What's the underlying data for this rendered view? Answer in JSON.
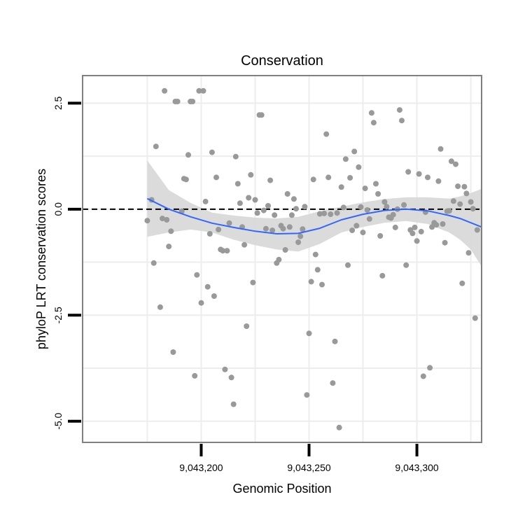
{
  "chart_data": {
    "type": "scatter",
    "title": "Conservation",
    "xlabel": "Genomic Position",
    "ylabel": "phyloP LRT conservation scores",
    "xlim": [
      9043145,
      9043330
    ],
    "ylim": [
      -5.5,
      3.15
    ],
    "x_ticks": [
      {
        "value": 9043200,
        "label": "9,043,200"
      },
      {
        "value": 9043250,
        "label": "9,043,250"
      },
      {
        "value": 9043300,
        "label": "9,043,300"
      }
    ],
    "y_ticks": [
      {
        "value": 2.5,
        "label": "2.5"
      },
      {
        "value": 0.0,
        "label": "0.0"
      },
      {
        "value": -2.5,
        "label": "-2.5"
      },
      {
        "value": -5.0,
        "label": "-5.0"
      }
    ],
    "reference_line": {
      "y": 0,
      "style": "dashed"
    },
    "colors": {
      "points": "#999999",
      "smooth_line": "#3366ff",
      "confidence_band": "#d9d9d9",
      "grid": "#ededed",
      "panel_border": "#808080",
      "axis": "#000000"
    },
    "points": [
      [
        9043175,
        -0.27
      ],
      [
        9043177,
        0.22
      ],
      [
        9043178,
        -1.27
      ],
      [
        9043179,
        1.48
      ],
      [
        9043181,
        -2.31
      ],
      [
        9043182,
        -0.22
      ],
      [
        9043183,
        2.79
      ],
      [
        9043184,
        -0.25
      ],
      [
        9043185,
        -0.88
      ],
      [
        9043186,
        -0.52
      ],
      [
        9043187,
        -3.37
      ],
      [
        9043188,
        2.54
      ],
      [
        9043189,
        2.54
      ],
      [
        9043191,
        -0.05
      ],
      [
        9043192,
        0.72
      ],
      [
        9043193,
        0.7
      ],
      [
        9043194,
        1.28
      ],
      [
        9043195,
        2.54
      ],
      [
        9043196,
        2.54
      ],
      [
        9043197,
        -3.93
      ],
      [
        9043198,
        -1.55
      ],
      [
        9043199,
        2.79
      ],
      [
        9043200,
        -2.21
      ],
      [
        9043201,
        2.79
      ],
      [
        9043202,
        0.18
      ],
      [
        9043203,
        -1.83
      ],
      [
        9043204,
        -0.58
      ],
      [
        9043205,
        1.34
      ],
      [
        9043206,
        -2.05
      ],
      [
        9043207,
        0.75
      ],
      [
        9043208,
        -0.48
      ],
      [
        9043209,
        -0.95
      ],
      [
        9043210,
        -0.98
      ],
      [
        9043211,
        -3.78
      ],
      [
        9043212,
        -0.98
      ],
      [
        9043213,
        -0.33
      ],
      [
        9043214,
        -3.97
      ],
      [
        9043215,
        -4.6
      ],
      [
        9043216,
        1.24
      ],
      [
        9043217,
        0.6
      ],
      [
        9043218,
        0.14
      ],
      [
        9043219,
        -0.42
      ],
      [
        9043220,
        -0.84
      ],
      [
        9043221,
        -2.76
      ],
      [
        9043222,
        0.27
      ],
      [
        9043223,
        0.81
      ],
      [
        9043224,
        -1.73
      ],
      [
        9043225,
        0.22
      ],
      [
        9043226,
        -0.09
      ],
      [
        9043227,
        2.22
      ],
      [
        9043228,
        2.22
      ],
      [
        9043229,
        -0.03
      ],
      [
        9043230,
        -0.46
      ],
      [
        9043231,
        0.08
      ],
      [
        9043232,
        0.68
      ],
      [
        9043233,
        -0.5
      ],
      [
        9043234,
        -0.14
      ],
      [
        9043235,
        -1.27
      ],
      [
        9043236,
        -1.19
      ],
      [
        9043237,
        -0.39
      ],
      [
        9043238,
        -0.46
      ],
      [
        9043239,
        -0.96
      ],
      [
        9043240,
        0.36
      ],
      [
        9043241,
        -0.42
      ],
      [
        9043242,
        -0.14
      ],
      [
        9043243,
        0.24
      ],
      [
        9043244,
        0.01
      ],
      [
        9043245,
        -0.78
      ],
      [
        9043246,
        -0.64
      ],
      [
        9043247,
        -0.47
      ],
      [
        9043248,
        0.06
      ],
      [
        9043249,
        -4.38
      ],
      [
        9043250,
        -2.93
      ],
      [
        9043251,
        -1.71
      ],
      [
        9043252,
        0.7
      ],
      [
        9043253,
        -1.07
      ],
      [
        9043254,
        -1.43
      ],
      [
        9043255,
        -0.11
      ],
      [
        9043256,
        -1.78
      ],
      [
        9043257,
        -0.1
      ],
      [
        9043258,
        1.77
      ],
      [
        9043259,
        0.75
      ],
      [
        9043260,
        -0.12
      ],
      [
        9043261,
        -4.1
      ],
      [
        9043262,
        -3.12
      ],
      [
        9043263,
        -0.09
      ],
      [
        9043264,
        -5.15
      ],
      [
        9043265,
        0.52
      ],
      [
        9043266,
        0.04
      ],
      [
        9043267,
        1.18
      ],
      [
        9043268,
        -1.32
      ],
      [
        9043269,
        0.74
      ],
      [
        9043270,
        -0.5
      ],
      [
        9043271,
        1.36
      ],
      [
        9043272,
        -0.39
      ],
      [
        9043273,
        0.99
      ],
      [
        9043274,
        0.05
      ],
      [
        9043275,
        -0.55
      ],
      [
        9043276,
        0.49
      ],
      [
        9043277,
        -0.02
      ],
      [
        9043278,
        -0.23
      ],
      [
        9043279,
        2.27
      ],
      [
        9043280,
        2.04
      ],
      [
        9043281,
        0.6
      ],
      [
        9043282,
        0.36
      ],
      [
        9043283,
        -0.63
      ],
      [
        9043284,
        -1.57
      ],
      [
        9043285,
        0.17
      ],
      [
        9043286,
        0.06
      ],
      [
        9043287,
        -0.19
      ],
      [
        9043288,
        -0.21
      ],
      [
        9043289,
        -0.13
      ],
      [
        9043290,
        -0.43
      ],
      [
        9043291,
        0.0
      ],
      [
        9043292,
        2.34
      ],
      [
        9043293,
        2.09
      ],
      [
        9043294,
        0.1
      ],
      [
        9043295,
        -1.32
      ],
      [
        9043296,
        0.88
      ],
      [
        9043297,
        -0.49
      ],
      [
        9043298,
        -0.57
      ],
      [
        9043299,
        -0.43
      ],
      [
        9043300,
        -0.75
      ],
      [
        9043301,
        0.83
      ],
      [
        9043302,
        -0.53
      ],
      [
        9043303,
        -3.94
      ],
      [
        9043304,
        -0.07
      ],
      [
        9043305,
        0.75
      ],
      [
        9043306,
        -3.74
      ],
      [
        9043307,
        -0.42
      ],
      [
        9043308,
        -0.32
      ],
      [
        9043309,
        -0.37
      ],
      [
        9043310,
        0.66
      ],
      [
        9043311,
        1.42
      ],
      [
        9043312,
        -0.35
      ],
      [
        9043313,
        -0.79
      ],
      [
        9043314,
        -0.05
      ],
      [
        9043315,
        -0.04
      ],
      [
        9043316,
        1.13
      ],
      [
        9043317,
        0.19
      ],
      [
        9043318,
        1.06
      ],
      [
        9043319,
        0.54
      ],
      [
        9043320,
        0.12
      ],
      [
        9043321,
        -1.75
      ],
      [
        9043322,
        0.53
      ],
      [
        9043323,
        0.37
      ],
      [
        9043324,
        -1.03
      ],
      [
        9043325,
        0.17
      ],
      [
        9043326,
        0.01
      ],
      [
        9043327,
        -2.57
      ],
      [
        9043328,
        -0.49
      ]
    ],
    "smooth": {
      "x": [
        9043175,
        9043185,
        9043195,
        9043205,
        9043215,
        9043225,
        9043235,
        9043245,
        9043255,
        9043265,
        9043275,
        9043285,
        9043295,
        9043305,
        9043315,
        9043320,
        9043325,
        9043330
      ],
      "y": [
        0.25,
        0.0,
        -0.18,
        -0.33,
        -0.43,
        -0.52,
        -0.58,
        -0.57,
        -0.45,
        -0.25,
        -0.12,
        -0.03,
        0.0,
        -0.04,
        -0.15,
        -0.22,
        -0.32,
        -0.42
      ],
      "lo": [
        -0.65,
        -0.55,
        -0.48,
        -0.55,
        -0.72,
        -0.85,
        -0.95,
        -1.0,
        -0.82,
        -0.55,
        -0.42,
        -0.32,
        -0.28,
        -0.35,
        -0.55,
        -0.72,
        -0.95,
        -1.35
      ],
      "hi": [
        1.15,
        0.45,
        0.15,
        -0.08,
        -0.15,
        -0.2,
        -0.22,
        -0.18,
        -0.05,
        0.06,
        0.16,
        0.24,
        0.28,
        0.28,
        0.25,
        0.3,
        0.38,
        0.48
      ]
    }
  }
}
